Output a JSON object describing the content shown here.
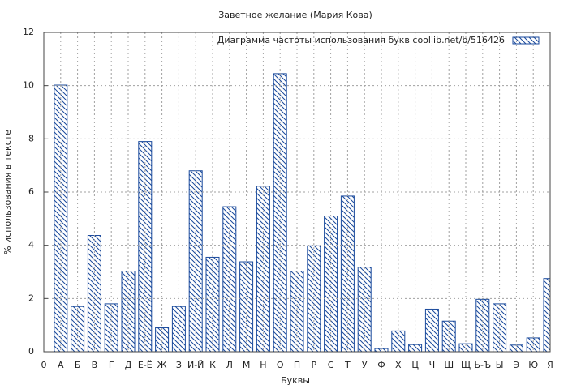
{
  "chart_data": {
    "type": "bar",
    "title": "Заветное желание (Мария Кова)",
    "x_label": "Буквы",
    "y_label": "% использования в тексте",
    "categories": [
      "0",
      "А",
      "Б",
      "В",
      "Г",
      "Д",
      "Е-Ё",
      "Ж",
      "З",
      "И-Й",
      "К",
      "Л",
      "М",
      "Н",
      "О",
      "П",
      "Р",
      "С",
      "Т",
      "У",
      "Ф",
      "Х",
      "Ц",
      "Ч",
      "Ш",
      "Щ",
      "Ь-Ъ",
      "Ы",
      "Э",
      "Ю",
      "Я"
    ],
    "series": [
      {
        "name": "Диаграмма частоты использования букв  coollib.net/b/516426",
        "color": "#1a4a9c",
        "values": [
          null,
          10.02,
          1.7,
          4.37,
          1.8,
          3.03,
          7.9,
          0.9,
          1.7,
          6.8,
          3.55,
          5.45,
          3.38,
          6.22,
          10.45,
          3.03,
          3.98,
          5.1,
          5.85,
          3.18,
          0.12,
          0.78,
          0.27,
          1.6,
          1.15,
          0.3,
          1.97,
          1.8,
          0.25,
          0.52,
          2.75
        ]
      }
    ],
    "ylim": [
      0,
      12
    ],
    "yticks": [
      0,
      2,
      4,
      6,
      8,
      10,
      12
    ],
    "grid": true,
    "legend": "top-right"
  }
}
